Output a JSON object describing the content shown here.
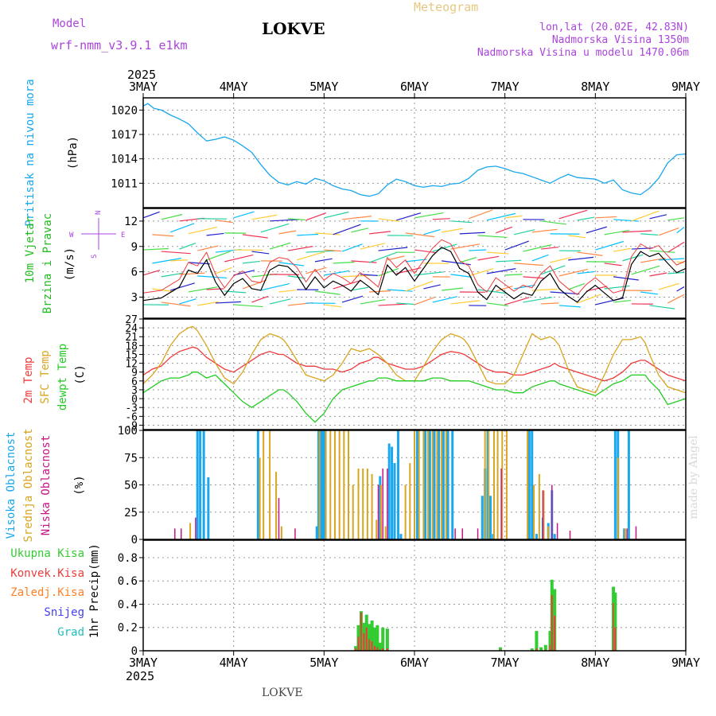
{
  "header": {
    "model_label": "Model",
    "model_name": "wrf-nmm_v3.9.1 e1km",
    "station": "LOKVE",
    "product": "Meteogram",
    "coords": "lon,lat (20.02E, 42.83N)",
    "elevation": "Nadmorska Visina 1350m",
    "model_elevation": "Nadmorska Visina u modelu 1470.06m",
    "footer_station": "LOKVE",
    "credit": "made by Angel"
  },
  "time_axis": {
    "year": "2025",
    "ticks": [
      "3MAY",
      "4MAY",
      "5MAY",
      "6MAY",
      "7MAY",
      "8MAY",
      "9MAY"
    ]
  },
  "colors": {
    "pressure": "#1aa7ee",
    "temp2m": "#ee3b3b",
    "sfctemp": "#daa520",
    "dewpt": "#22cc22",
    "high_cloud": "#1aa7ee",
    "mid_cloud": "#daa520",
    "low_cloud": "#c71585",
    "total_precip": "#33cc33",
    "conv_precip": "#ee3b3b",
    "frozen_precip": "#ff7f24",
    "snow": "#4040ee",
    "graupel": "#20c0c0",
    "wind_label": "#22bb22",
    "compass": "#aa44dd",
    "meteogram_title": "#e8c880",
    "info_text": "#aa44dd"
  },
  "chart_data": [
    {
      "type": "line",
      "name": "pressure",
      "ylabel": "Pritisak na nivou mora",
      "unit": "(hPa)",
      "yticks": [
        1011,
        1014,
        1017,
        1020
      ],
      "ylim": [
        1008,
        1021.5
      ],
      "x": [
        0,
        0.05,
        0.12,
        0.2,
        0.3,
        0.4,
        0.5,
        0.6,
        0.7,
        0.8,
        0.9,
        1.0,
        1.1,
        1.2,
        1.3,
        1.4,
        1.5,
        1.6,
        1.7,
        1.8,
        1.9,
        2.0,
        2.1,
        2.2,
        2.3,
        2.4,
        2.5,
        2.6,
        2.7,
        2.8,
        2.9,
        3.0,
        3.1,
        3.2,
        3.3,
        3.4,
        3.5,
        3.6,
        3.7,
        3.8,
        3.9,
        4.0,
        4.1,
        4.2,
        4.3,
        4.4,
        4.5,
        4.6,
        4.7,
        4.8,
        4.9,
        5.0,
        5.1,
        5.2,
        5.3,
        5.4,
        5.5,
        5.6,
        5.7,
        5.8,
        5.9,
        6.0
      ],
      "y": [
        1020.5,
        1020.8,
        1020.2,
        1020.0,
        1019.4,
        1018.9,
        1018.3,
        1017.2,
        1016.2,
        1016.4,
        1016.7,
        1016.3,
        1015.6,
        1014.8,
        1013.3,
        1012.0,
        1011.1,
        1010.8,
        1011.2,
        1010.9,
        1011.6,
        1011.3,
        1010.7,
        1010.3,
        1010.1,
        1009.6,
        1009.4,
        1009.7,
        1010.8,
        1011.5,
        1011.2,
        1010.7,
        1010.5,
        1010.7,
        1010.6,
        1010.9,
        1011.0,
        1011.6,
        1012.6,
        1013.0,
        1013.1,
        1012.8,
        1012.4,
        1012.2,
        1011.8,
        1011.4,
        1011.0,
        1011.6,
        1012.1,
        1011.7,
        1011.6,
        1011.5,
        1011.0,
        1011.4,
        1010.2,
        1009.8,
        1009.6,
        1010.4,
        1011.6,
        1013.5,
        1014.5,
        1014.6
      ]
    },
    {
      "type": "line",
      "name": "wind",
      "ylabel": "10m Vjetar",
      "ylabel2": "Brzina i Pravac",
      "unit": "(m/s)",
      "compass": {
        "n": "N",
        "s": "S",
        "w": "W",
        "e": "E"
      },
      "yticks": [
        3,
        6,
        9,
        12
      ],
      "ylim": [
        0.5,
        13.5
      ],
      "x": [
        0,
        0.2,
        0.4,
        0.5,
        0.6,
        0.7,
        0.8,
        0.9,
        1.0,
        1.1,
        1.2,
        1.3,
        1.4,
        1.5,
        1.6,
        1.7,
        1.8,
        1.9,
        2.0,
        2.1,
        2.2,
        2.3,
        2.4,
        2.5,
        2.6,
        2.7,
        2.8,
        2.9,
        3.0,
        3.1,
        3.2,
        3.3,
        3.4,
        3.5,
        3.6,
        3.7,
        3.8,
        3.9,
        4.0,
        4.1,
        4.2,
        4.3,
        4.4,
        4.5,
        4.6,
        4.7,
        4.8,
        4.9,
        5.0,
        5.1,
        5.2,
        5.3,
        5.4,
        5.5,
        5.6,
        5.7,
        5.8,
        5.9,
        6.0
      ],
      "y": [
        2.6,
        2.9,
        4.2,
        6.2,
        5.8,
        7.4,
        4.8,
        3.2,
        4.6,
        5.2,
        4.0,
        3.8,
        6.2,
        6.8,
        6.6,
        5.6,
        3.9,
        5.4,
        4.1,
        4.9,
        4.4,
        3.7,
        5.0,
        4.2,
        3.3,
        6.8,
        5.6,
        6.5,
        4.9,
        6.4,
        7.9,
        8.9,
        8.4,
        6.4,
        5.8,
        3.6,
        2.7,
        4.4,
        3.6,
        2.8,
        3.5,
        3.2,
        4.9,
        5.8,
        4.0,
        3.1,
        2.4,
        3.6,
        4.4,
        3.5,
        2.6,
        2.9,
        6.9,
        8.4,
        7.8,
        8.2,
        7.0,
        5.9,
        6.4
      ],
      "speed_colors": [
        "#2222cc",
        "#00bfff",
        "#20d0a0",
        "#44dd44",
        "#ffcc33",
        "#ff8844",
        "#ee3355"
      ]
    },
    {
      "type": "line",
      "name": "temperature",
      "ylabel": "2m Temp",
      "ylabel2": "SFC Temp",
      "ylabel3": "dewpt Temp",
      "unit": "(C)",
      "yticks": [
        -9,
        -6,
        -3,
        0,
        3,
        6,
        9,
        12,
        15,
        18,
        21,
        24,
        27
      ],
      "ylim": [
        -10.5,
        27
      ],
      "x": [
        0,
        0.1,
        0.2,
        0.3,
        0.4,
        0.5,
        0.55,
        0.6,
        0.7,
        0.8,
        0.9,
        1.0,
        1.1,
        1.2,
        1.3,
        1.4,
        1.5,
        1.55,
        1.6,
        1.7,
        1.8,
        1.9,
        2.0,
        2.1,
        2.2,
        2.3,
        2.4,
        2.5,
        2.55,
        2.6,
        2.7,
        2.8,
        2.9,
        3.0,
        3.1,
        3.2,
        3.3,
        3.4,
        3.5,
        3.55,
        3.6,
        3.7,
        3.8,
        3.9,
        4.0,
        4.1,
        4.2,
        4.3,
        4.4,
        4.5,
        4.55,
        4.6,
        4.7,
        4.8,
        4.9,
        5.0,
        5.1,
        5.2,
        5.3,
        5.4,
        5.5,
        5.55,
        5.6,
        5.7,
        5.8,
        5.9,
        6.0
      ],
      "series": [
        {
          "name": "2m Temp",
          "key": "temp2m",
          "y": [
            8,
            10,
            11,
            14,
            16,
            17,
            17.5,
            17,
            14,
            12,
            10,
            9,
            11,
            13,
            15,
            16,
            15,
            15,
            14,
            12,
            11,
            11,
            10,
            10,
            9,
            10,
            12,
            13,
            14,
            14,
            12,
            11,
            10,
            10,
            11,
            13,
            15,
            16,
            15.5,
            15,
            14,
            12,
            10,
            9,
            9,
            8,
            8,
            9,
            10,
            11,
            12,
            11,
            10,
            9,
            8,
            7,
            6,
            7,
            9,
            12,
            13,
            13,
            12,
            10,
            8,
            7,
            6
          ]
        },
        {
          "name": "SFC Temp",
          "key": "sfctemp",
          "y": [
            5,
            8,
            12,
            18,
            22,
            24,
            24.5,
            23,
            18,
            12,
            7,
            5,
            9,
            15,
            20,
            22,
            21,
            20,
            18,
            13,
            8,
            7,
            6,
            8,
            12,
            17,
            16,
            17,
            16,
            15,
            12,
            8,
            6,
            6,
            11,
            16,
            20,
            22,
            21,
            20,
            18,
            12,
            6,
            5,
            5,
            8,
            15,
            22,
            20,
            21,
            20,
            18,
            10,
            4,
            3,
            2,
            8,
            15,
            20,
            20,
            21,
            19,
            15,
            8,
            4,
            3,
            2
          ]
        },
        {
          "name": "dewpt Temp",
          "key": "dewpt",
          "y": [
            2,
            4,
            6,
            7,
            7,
            8,
            9,
            9,
            7,
            8,
            5,
            2,
            -1,
            -3,
            -1,
            1,
            3,
            3,
            2,
            -1,
            -5,
            -8,
            -5,
            0,
            3,
            4,
            5,
            6,
            6,
            7,
            7,
            6,
            6,
            6,
            6,
            7,
            7,
            6,
            6,
            6,
            6,
            5,
            4,
            3,
            3,
            2,
            2,
            4,
            5,
            6,
            6,
            5,
            4,
            3,
            2,
            1,
            3,
            5,
            6,
            8,
            8,
            8,
            6,
            3,
            -2,
            -1,
            0
          ]
        }
      ]
    },
    {
      "type": "bar",
      "name": "cloud",
      "ylabel": "Visoka Oblacnost",
      "ylabel2": "Srednja Oblacnost",
      "ylabel3": "Niska Oblacnost",
      "unit": "(%)",
      "yticks": [
        0,
        25,
        50,
        75,
        100
      ],
      "ylim": [
        0,
        100
      ],
      "series": [
        {
          "name": "high",
          "key": "high_cloud",
          "x": [
            0.6,
            0.63,
            0.67,
            0.72,
            1.27,
            1.92,
            1.94,
            1.96,
            1.98,
            2.0,
            2.62,
            2.72,
            2.75,
            2.78,
            2.82,
            2.85,
            3.03,
            3.12,
            3.17,
            3.22,
            3.27,
            3.32,
            3.37,
            3.42,
            3.75,
            3.78,
            3.81,
            3.84,
            3.87,
            4.27,
            4.3,
            4.35,
            4.42,
            4.48,
            4.52,
            4.55,
            5.22,
            5.25,
            5.32,
            5.37
          ],
          "y": [
            100,
            100,
            100,
            57,
            100,
            12,
            100,
            100,
            100,
            100,
            58,
            88,
            85,
            70,
            100,
            5,
            100,
            100,
            100,
            100,
            100,
            100,
            100,
            100,
            40,
            65,
            100,
            40,
            5,
            100,
            100,
            5,
            20,
            15,
            45,
            5,
            100,
            100,
            10,
            100
          ]
        },
        {
          "name": "mid",
          "key": "mid_cloud",
          "x": [
            0.52,
            1.29,
            1.33,
            1.4,
            1.47,
            1.53,
            1.95,
            2.02,
            2.07,
            2.12,
            2.17,
            2.22,
            2.27,
            2.32,
            2.38,
            2.43,
            2.48,
            2.53,
            2.58,
            2.63,
            2.68,
            2.9,
            2.95,
            3.0,
            3.05,
            3.1,
            3.15,
            3.2,
            3.25,
            3.3,
            3.35,
            3.78,
            3.82,
            3.88,
            3.92,
            3.97,
            4.02,
            4.25,
            4.32,
            4.38,
            4.43,
            4.48,
            5.25,
            5.33
          ],
          "y": [
            15,
            75,
            100,
            100,
            62,
            12,
            100,
            100,
            100,
            100,
            100,
            100,
            100,
            50,
            65,
            65,
            65,
            60,
            18,
            50,
            12,
            50,
            70,
            100,
            100,
            100,
            100,
            100,
            100,
            100,
            100,
            100,
            100,
            100,
            100,
            100,
            100,
            100,
            50,
            60,
            45,
            12,
            75,
            10
          ]
        },
        {
          "name": "low",
          "key": "low_cloud",
          "x": [
            0.35,
            0.42,
            0.58,
            1.5,
            1.68,
            2.6,
            2.65,
            2.7,
            3.45,
            3.53,
            3.7,
            3.96,
            4.42,
            4.52,
            4.58,
            4.72,
            5.35,
            5.45
          ],
          "y": [
            10,
            10,
            20,
            38,
            10,
            50,
            65,
            65,
            10,
            10,
            10,
            65,
            45,
            50,
            15,
            8,
            10,
            12
          ]
        }
      ]
    },
    {
      "type": "bar",
      "name": "precip",
      "ylabel": "1hr Precip",
      "unit": "(mm)",
      "legend": [
        "Ukupna Kisa",
        "Konvek.Kisa",
        "Zaledj.Kisa",
        "Snijeg",
        "Grad"
      ],
      "yticks": [
        0,
        0.2,
        0.4,
        0.6,
        0.8
      ],
      "ylim": [
        0,
        0.95
      ],
      "x": [
        2.35,
        2.38,
        2.41,
        2.44,
        2.47,
        2.5,
        2.53,
        2.56,
        2.59,
        2.62,
        2.65,
        2.7,
        3.95,
        4.3,
        4.35,
        4.4,
        4.45,
        4.5,
        4.52,
        4.55,
        5.2,
        5.22
      ],
      "total": [
        0.04,
        0.22,
        0.34,
        0.24,
        0.31,
        0.23,
        0.26,
        0.2,
        0.22,
        0.07,
        0.2,
        0.19,
        0.03,
        0.02,
        0.17,
        0.03,
        0.05,
        0.17,
        0.61,
        0.53,
        0.55,
        0.5
      ],
      "convective": [
        0.02,
        0.12,
        0.33,
        0.15,
        0.2,
        0.1,
        0.08,
        0.04,
        0.03,
        0.01,
        0.02,
        0.02,
        0.01,
        0.0,
        0.02,
        0.0,
        0.01,
        0.05,
        0.48,
        0.3,
        0.41,
        0.2
      ]
    }
  ]
}
